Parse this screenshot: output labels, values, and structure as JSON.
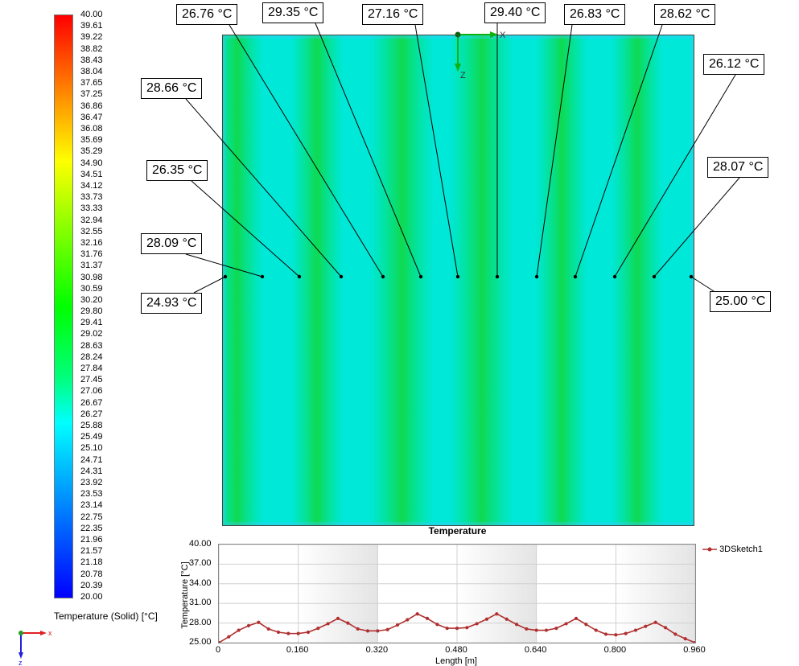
{
  "legend": {
    "title": "Temperature (Solid) [°C]",
    "ticks": [
      "40.00",
      "39.61",
      "39.22",
      "38.82",
      "38.43",
      "38.04",
      "37.65",
      "37.25",
      "36.86",
      "36.47",
      "36.08",
      "35.69",
      "35.29",
      "34.90",
      "34.51",
      "34.12",
      "33.73",
      "33.33",
      "32.94",
      "32.55",
      "32.16",
      "31.76",
      "31.37",
      "30.98",
      "30.59",
      "30.20",
      "29.80",
      "29.41",
      "29.02",
      "28.63",
      "28.24",
      "27.84",
      "27.45",
      "27.06",
      "26.67",
      "26.27",
      "25.88",
      "25.49",
      "25.10",
      "24.71",
      "24.31",
      "23.92",
      "23.53",
      "23.14",
      "22.75",
      "22.35",
      "21.96",
      "21.57",
      "21.18",
      "20.78",
      "20.39",
      "20.00"
    ],
    "min": 20,
    "max": 40
  },
  "axes_triad": {
    "x": "X",
    "z": "Z"
  },
  "contour": {
    "title": "Temperature",
    "bands": [
      0.03,
      0.2,
      0.38,
      0.55,
      0.72,
      0.88
    ]
  },
  "callouts": [
    {
      "text": "24.93 °C"
    },
    {
      "text": "28.09 °C"
    },
    {
      "text": "26.35 °C"
    },
    {
      "text": "28.66 °C"
    },
    {
      "text": "26.76 °C"
    },
    {
      "text": "29.35 °C"
    },
    {
      "text": "27.16 °C"
    },
    {
      "text": "29.40 °C"
    },
    {
      "text": "26.83 °C"
    },
    {
      "text": "28.62 °C"
    },
    {
      "text": "26.12 °C"
    },
    {
      "text": "28.07 °C"
    },
    {
      "text": "25.00 °C"
    }
  ],
  "chart_data": {
    "type": "line",
    "title": "",
    "xlabel": "Length [m]",
    "ylabel": "Temperature [°C]",
    "xlim": [
      0,
      0.96
    ],
    "ylim": [
      25,
      40
    ],
    "xticks": [
      "0",
      "0.160",
      "0.320",
      "0.480",
      "0.640",
      "0.800",
      "0.960"
    ],
    "yticks": [
      "40.00",
      "37.00",
      "34.00",
      "31.00",
      "28.00",
      "25.00"
    ],
    "series": [
      {
        "name": "3DSketch1",
        "color": "#b03030",
        "x": [
          0,
          0.02,
          0.04,
          0.06,
          0.08,
          0.1,
          0.12,
          0.14,
          0.16,
          0.18,
          0.2,
          0.22,
          0.24,
          0.26,
          0.28,
          0.3,
          0.32,
          0.34,
          0.36,
          0.38,
          0.4,
          0.42,
          0.44,
          0.46,
          0.48,
          0.5,
          0.52,
          0.54,
          0.56,
          0.58,
          0.6,
          0.62,
          0.64,
          0.66,
          0.68,
          0.7,
          0.72,
          0.74,
          0.76,
          0.78,
          0.8,
          0.82,
          0.84,
          0.86,
          0.88,
          0.9,
          0.92,
          0.94,
          0.96
        ],
        "y": [
          25.0,
          25.9,
          26.9,
          27.6,
          28.1,
          27.1,
          26.6,
          26.4,
          26.4,
          26.6,
          27.2,
          27.9,
          28.7,
          28.0,
          27.1,
          26.8,
          26.8,
          27.0,
          27.7,
          28.5,
          29.4,
          28.7,
          27.8,
          27.2,
          27.2,
          27.3,
          27.9,
          28.6,
          29.4,
          28.6,
          27.8,
          27.1,
          26.9,
          26.9,
          27.2,
          27.9,
          28.7,
          27.8,
          26.9,
          26.3,
          26.2,
          26.4,
          26.9,
          27.5,
          28.1,
          27.3,
          26.3,
          25.6,
          25.0
        ]
      }
    ]
  }
}
